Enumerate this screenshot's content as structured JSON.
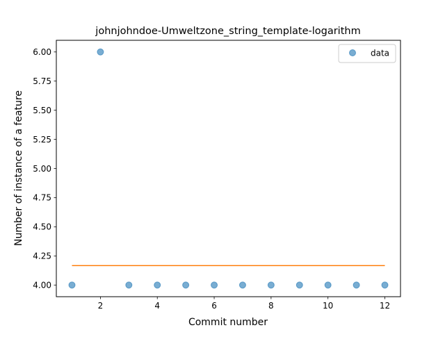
{
  "chart_data": {
    "type": "scatter",
    "title": "johnjohndoe-Umweltzone_string_template-logarithm",
    "xlabel": "Commit number",
    "ylabel": "Number of instance of a feature",
    "xlim": [
      0.45,
      12.55
    ],
    "ylim": [
      3.9,
      6.1
    ],
    "xticks": [
      2,
      4,
      6,
      8,
      10,
      12
    ],
    "yticks": [
      4.0,
      4.25,
      4.5,
      4.75,
      5.0,
      5.25,
      5.5,
      5.75,
      6.0
    ],
    "grid": false,
    "legend_position": "upper right",
    "colors": {
      "scatter": "#1f77b4",
      "line": "#ff7f0e"
    },
    "series": [
      {
        "name": "data",
        "kind": "scatter",
        "x": [
          1,
          2,
          3,
          4,
          5,
          6,
          7,
          8,
          9,
          10,
          11,
          12
        ],
        "y": [
          4,
          6,
          4,
          4,
          4,
          4,
          4,
          4,
          4,
          4,
          4,
          4
        ]
      },
      {
        "kind": "line",
        "x": [
          1,
          12
        ],
        "y": [
          4.1667,
          4.1667
        ]
      }
    ]
  }
}
